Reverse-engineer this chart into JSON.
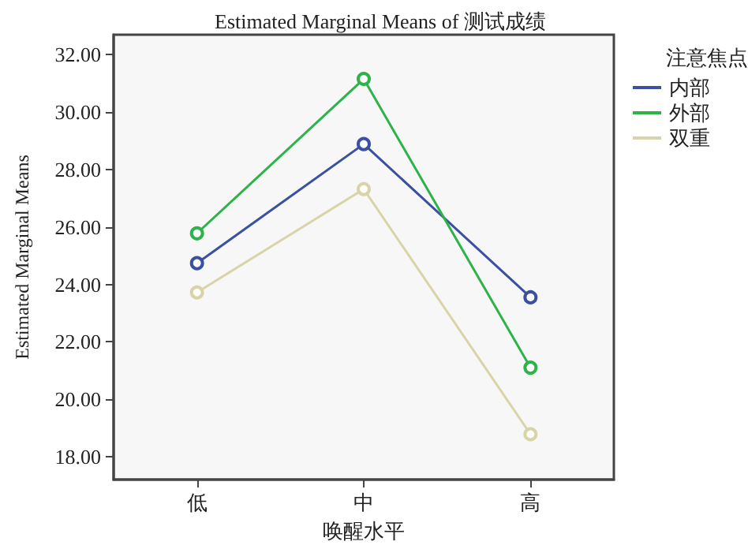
{
  "chart_data": {
    "type": "line",
    "title": "Estimated Marginal Means of 测试成绩",
    "xlabel": "唤醒水平",
    "ylabel": "Estimated Marginal Means",
    "legend_title": "注意焦点",
    "categories": [
      "低",
      "中",
      "高"
    ],
    "series": [
      {
        "name": "内部",
        "color": "#3a50a0",
        "values": [
          24.74,
          28.89,
          23.55
        ]
      },
      {
        "name": "外部",
        "color": "#2db34a",
        "values": [
          25.78,
          31.16,
          21.1
        ]
      },
      {
        "name": "双重",
        "color": "#d8d4a8",
        "values": [
          23.72,
          27.32,
          18.78
        ]
      }
    ],
    "ylim": [
      17.2,
      32.7
    ],
    "yticks": [
      {
        "value": 18,
        "label": "18.00"
      },
      {
        "value": 20,
        "label": "20.00"
      },
      {
        "value": 22,
        "label": "22.00"
      },
      {
        "value": 24,
        "label": "24.00"
      },
      {
        "value": 26,
        "label": "26.00"
      },
      {
        "value": 28,
        "label": "28.00"
      },
      {
        "value": 30,
        "label": "30.00"
      },
      {
        "value": 32,
        "label": "32.00"
      }
    ],
    "grid": false,
    "legend": "top right",
    "marker": "circle",
    "line_style": "solid"
  }
}
